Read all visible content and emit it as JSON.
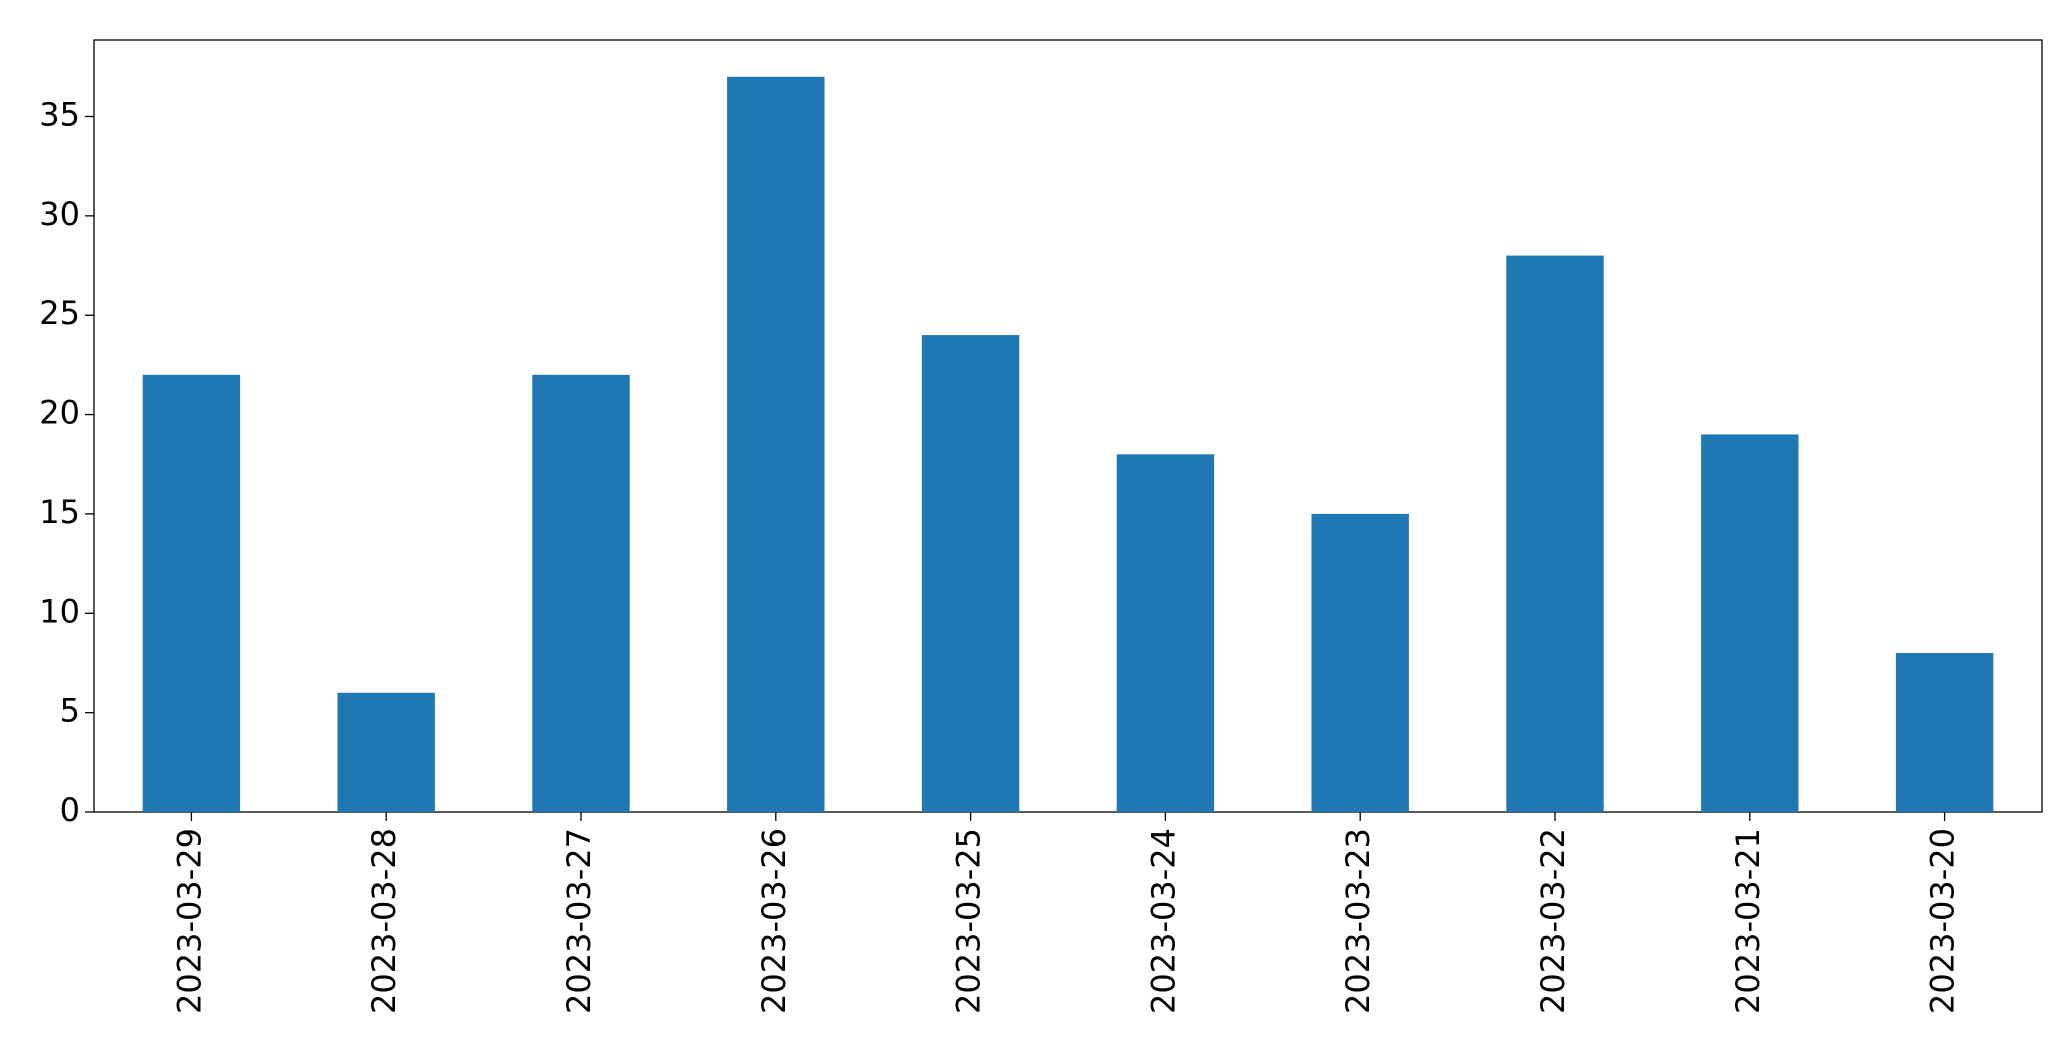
{
  "chart_data": {
    "type": "bar",
    "categories": [
      "2023-03-29",
      "2023-03-28",
      "2023-03-27",
      "2023-03-26",
      "2023-03-25",
      "2023-03-24",
      "2023-03-23",
      "2023-03-22",
      "2023-03-21",
      "2023-03-20"
    ],
    "values": [
      22,
      6,
      22,
      37,
      24,
      18,
      15,
      28,
      19,
      8
    ],
    "color": "#1f77b4",
    "ylim": [
      0,
      38.85
    ],
    "yticks": [
      0,
      5,
      10,
      15,
      20,
      25,
      30,
      35
    ],
    "grid": false
  }
}
